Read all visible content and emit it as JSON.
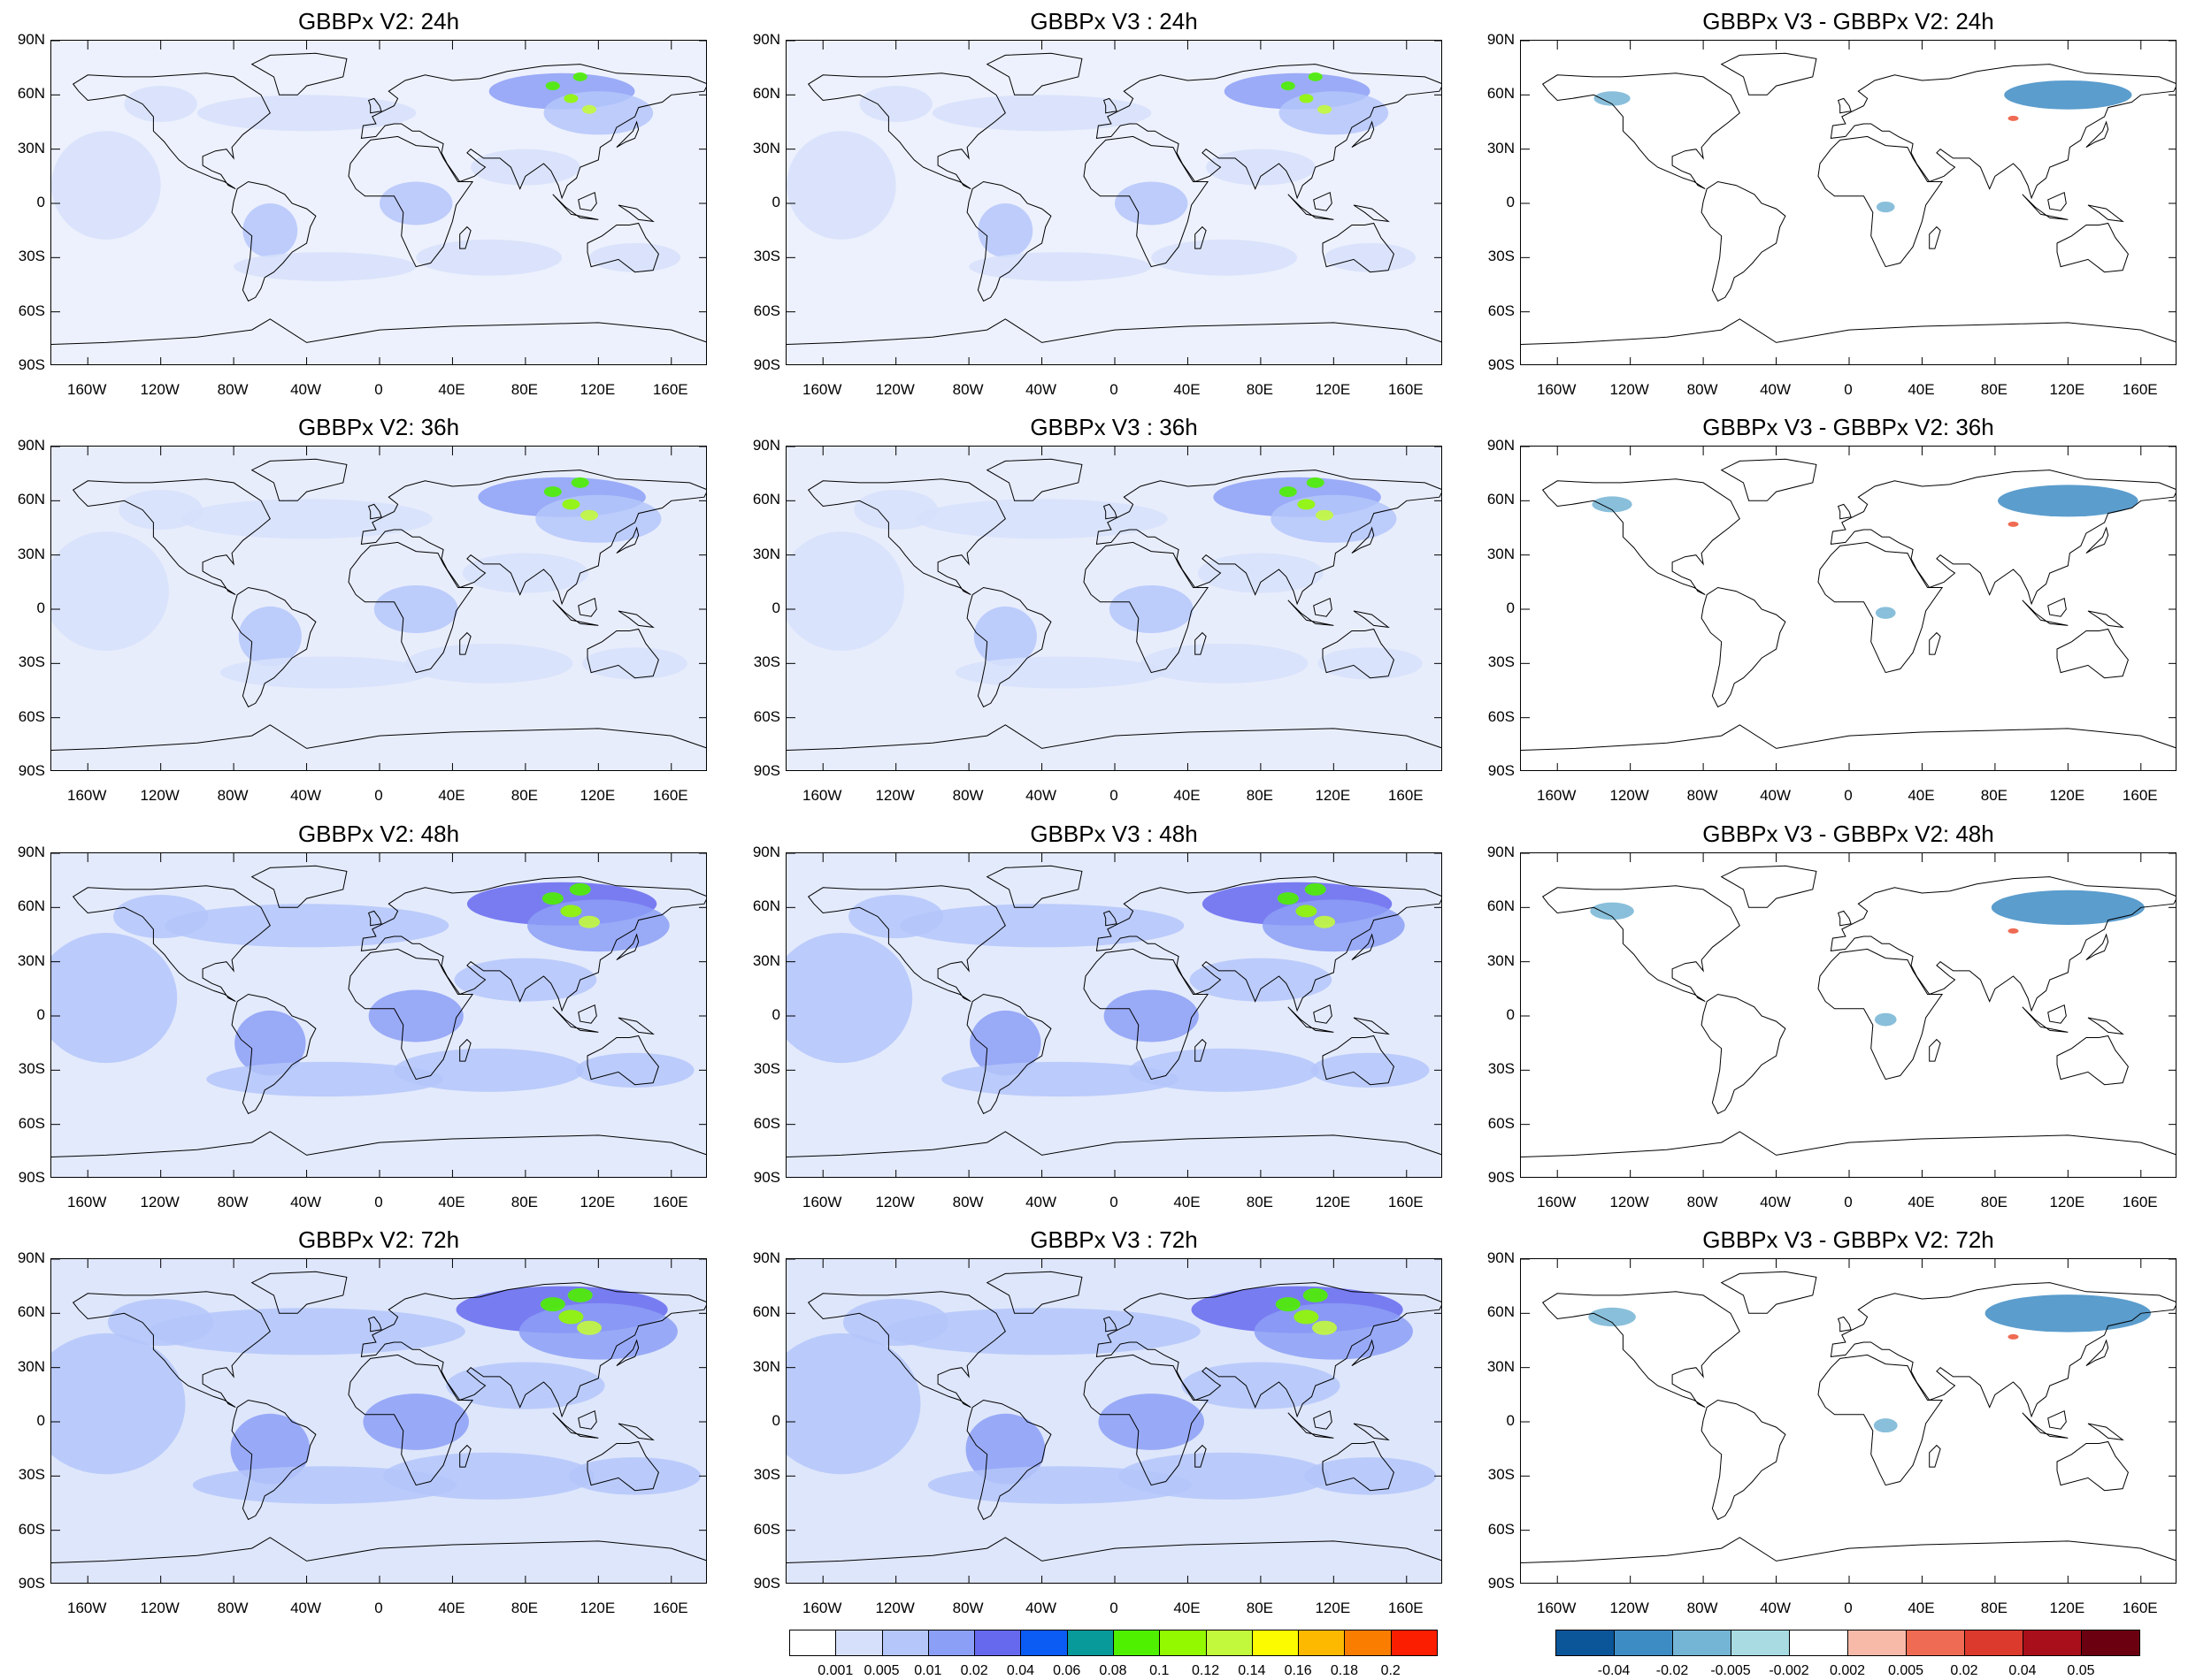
{
  "panels": [
    {
      "title": "GBBPx V2: 24h",
      "kind": "conc",
      "lead": 24
    },
    {
      "title": "GBBPx V3 : 24h",
      "kind": "conc",
      "lead": 24
    },
    {
      "title": "GBBPx V3 - GBBPx V2: 24h",
      "kind": "diff",
      "lead": 24
    },
    {
      "title": "GBBPx V2: 36h",
      "kind": "conc",
      "lead": 36
    },
    {
      "title": "GBBPx V3 : 36h",
      "kind": "conc",
      "lead": 36
    },
    {
      "title": "GBBPx V3 - GBBPx V2: 36h",
      "kind": "diff",
      "lead": 36
    },
    {
      "title": "GBBPx V2: 48h",
      "kind": "conc",
      "lead": 48
    },
    {
      "title": "GBBPx V3 : 48h",
      "kind": "conc",
      "lead": 48
    },
    {
      "title": "GBBPx V3 - GBBPx V2: 48h",
      "kind": "diff",
      "lead": 48
    },
    {
      "title": "GBBPx V2: 72h",
      "kind": "conc",
      "lead": 72
    },
    {
      "title": "GBBPx V3 : 72h",
      "kind": "conc",
      "lead": 72
    },
    {
      "title": "GBBPx V3 - GBBPx V2: 72h",
      "kind": "diff",
      "lead": 72
    }
  ],
  "lat_labels": [
    "90N",
    "60N",
    "30N",
    "0",
    "30S",
    "60S",
    "90S"
  ],
  "lon_labels": [
    "160W",
    "120W",
    "80W",
    "40W",
    "0",
    "40E",
    "80E",
    "120E",
    "160E"
  ],
  "colorbar_conc": {
    "colors": [
      "#ffffff",
      "#d6e0fa",
      "#b4c6fa",
      "#8c9ff6",
      "#6669ee",
      "#0a5cf5",
      "#08999a",
      "#4ff000",
      "#92f900",
      "#c3f93c",
      "#fdfb00",
      "#fcb900",
      "#fb7d00",
      "#fb1e00"
    ],
    "labels": [
      "0.001",
      "0.005",
      "0.01",
      "0.02",
      "0.04",
      "0.06",
      "0.08",
      "0.1",
      "0.12",
      "0.14",
      "0.16",
      "0.18",
      "0.2"
    ]
  },
  "colorbar_diff": {
    "colors": [
      "#0b5599",
      "#3e8cc4",
      "#74b4d4",
      "#a8dbe2",
      "#ffffff",
      "#f7b9a8",
      "#ef6b53",
      "#dd3a2e",
      "#a80f1a",
      "#6b0010"
    ],
    "labels": [
      "-0.04",
      "-0.02",
      "-0.005",
      "-0.002",
      "0.002",
      "0.005",
      "0.02",
      "0.04",
      "0.05"
    ]
  }
}
